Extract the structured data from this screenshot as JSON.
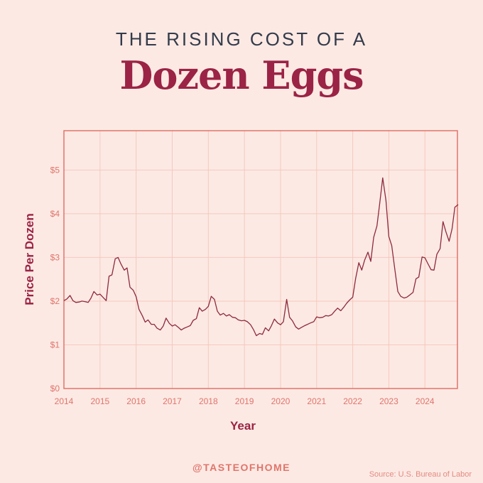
{
  "header": {
    "title_top": "THE RISING COST OF A",
    "title_main": "Dozen Eggs"
  },
  "footer": {
    "handle": "@TASTEOFHOME",
    "source": "Source: U.S. Bureau of Labor"
  },
  "colors": {
    "background": "#fce9e4",
    "plot_border": "#e0756a",
    "grid": "#f5c9bd",
    "line": "#8e2a3e",
    "tick_text": "#e0756a",
    "axis_title": "#9b2345"
  },
  "chart_data": {
    "type": "line",
    "xlabel": "Year",
    "ylabel": "Price Per Dozen",
    "xlim": [
      2014,
      2024.9
    ],
    "ylim": [
      0,
      5.9
    ],
    "grid": true,
    "x_ticks": [
      2014,
      2015,
      2016,
      2017,
      2018,
      2019,
      2020,
      2021,
      2022,
      2023,
      2024
    ],
    "x_tick_labels": [
      "2014",
      "2015",
      "2016",
      "2017",
      "2018",
      "2019",
      "2020",
      "2021",
      "2022",
      "2023",
      "2024"
    ],
    "y_ticks": [
      0,
      1,
      2,
      3,
      4,
      5
    ],
    "y_tick_labels": [
      "$0",
      "$1",
      "$2",
      "$3",
      "$4",
      "$5"
    ],
    "series": [
      {
        "x": [
          2014.0,
          2014.08,
          2014.17,
          2014.25,
          2014.33,
          2014.42,
          2014.5,
          2014.58,
          2014.67,
          2014.75,
          2014.83,
          2014.92,
          2015.0,
          2015.08,
          2015.17,
          2015.25,
          2015.33,
          2015.42,
          2015.5,
          2015.58,
          2015.67,
          2015.75,
          2015.83,
          2015.92,
          2016.0,
          2016.08,
          2016.17,
          2016.25,
          2016.33,
          2016.42,
          2016.5,
          2016.58,
          2016.67,
          2016.75,
          2016.83,
          2016.92,
          2017.0,
          2017.08,
          2017.17,
          2017.25,
          2017.33,
          2017.42,
          2017.5,
          2017.58,
          2017.67,
          2017.75,
          2017.83,
          2017.92,
          2018.0,
          2018.08,
          2018.17,
          2018.25,
          2018.33,
          2018.42,
          2018.5,
          2018.58,
          2018.67,
          2018.75,
          2018.83,
          2018.92,
          2019.0,
          2019.08,
          2019.17,
          2019.25,
          2019.33,
          2019.42,
          2019.5,
          2019.58,
          2019.67,
          2019.75,
          2019.83,
          2019.92,
          2020.0,
          2020.08,
          2020.17,
          2020.25,
          2020.33,
          2020.42,
          2020.5,
          2020.58,
          2020.67,
          2020.75,
          2020.83,
          2020.92,
          2021.0,
          2021.08,
          2021.17,
          2021.25,
          2021.33,
          2021.42,
          2021.5,
          2021.58,
          2021.67,
          2021.75,
          2021.83,
          2021.92,
          2022.0,
          2022.08,
          2022.17,
          2022.25,
          2022.33,
          2022.42,
          2022.5,
          2022.58,
          2022.67,
          2022.75,
          2022.83,
          2022.92,
          2023.0,
          2023.08,
          2023.17,
          2023.25,
          2023.33,
          2023.42,
          2023.5,
          2023.58,
          2023.67,
          2023.75,
          2023.83,
          2023.92,
          2024.0,
          2024.08,
          2024.17,
          2024.25,
          2024.33,
          2024.42,
          2024.5,
          2024.58,
          2024.67,
          2024.75,
          2024.83,
          2024.92
        ],
        "y": [
          2.01,
          2.05,
          2.13,
          2.01,
          1.97,
          1.98,
          2.0,
          1.99,
          1.97,
          2.07,
          2.22,
          2.14,
          2.16,
          2.09,
          2.01,
          2.57,
          2.6,
          2.97,
          3.0,
          2.85,
          2.71,
          2.76,
          2.32,
          2.25,
          2.1,
          1.81,
          1.67,
          1.52,
          1.57,
          1.47,
          1.47,
          1.38,
          1.34,
          1.43,
          1.61,
          1.49,
          1.43,
          1.46,
          1.4,
          1.34,
          1.38,
          1.41,
          1.44,
          1.56,
          1.6,
          1.85,
          1.77,
          1.81,
          1.88,
          2.11,
          2.04,
          1.77,
          1.68,
          1.72,
          1.66,
          1.69,
          1.63,
          1.62,
          1.57,
          1.55,
          1.56,
          1.53,
          1.46,
          1.35,
          1.21,
          1.26,
          1.24,
          1.39,
          1.32,
          1.44,
          1.59,
          1.5,
          1.46,
          1.53,
          2.04,
          1.63,
          1.55,
          1.41,
          1.36,
          1.4,
          1.44,
          1.47,
          1.5,
          1.53,
          1.64,
          1.62,
          1.63,
          1.67,
          1.66,
          1.69,
          1.77,
          1.84,
          1.78,
          1.86,
          1.95,
          2.03,
          2.09,
          2.52,
          2.88,
          2.71,
          2.94,
          3.12,
          2.91,
          3.46,
          3.72,
          4.25,
          4.82,
          4.3,
          3.48,
          3.27,
          2.7,
          2.22,
          2.11,
          2.07,
          2.09,
          2.14,
          2.2,
          2.51,
          2.55,
          3.01,
          2.99,
          2.86,
          2.72,
          2.71,
          3.07,
          3.2,
          3.82,
          3.59,
          3.37,
          3.65,
          4.15,
          4.21
        ]
      }
    ]
  }
}
